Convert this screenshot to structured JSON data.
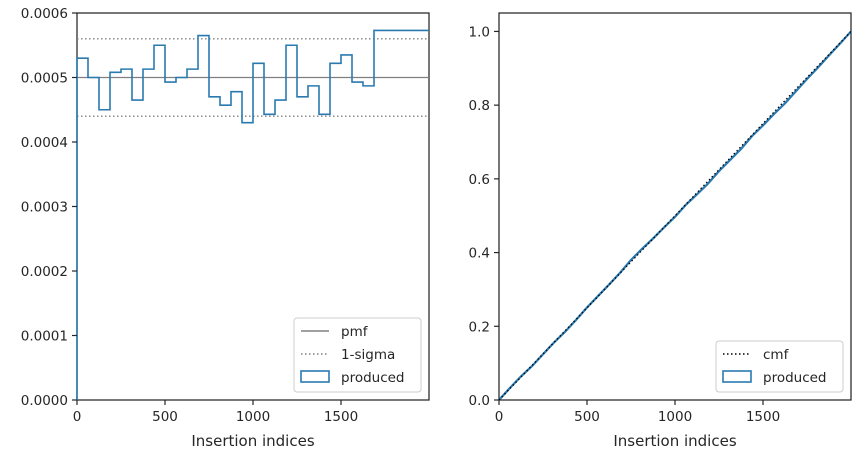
{
  "colors": {
    "produced": "#2a7ab0",
    "pmf": "#808080",
    "sigma": "#808080",
    "cmf": "#000000",
    "axes": "#262626"
  },
  "chart_data": [
    {
      "type": "step",
      "xlabel": "Insertion indices",
      "ylabel": "",
      "xlim": [
        0,
        2000
      ],
      "ylim": [
        0,
        0.0006
      ],
      "x_ticks": [
        0,
        500,
        1000,
        1500
      ],
      "x_tick_labels": [
        "0",
        "500",
        "1000",
        "1500"
      ],
      "y_ticks": [
        0,
        0.0001,
        0.0002,
        0.0003,
        0.0004,
        0.0005,
        0.0006
      ],
      "y_tick_labels": [
        "0.0000",
        "0.0001",
        "0.0002",
        "0.0003",
        "0.0004",
        "0.0005",
        "0.0006"
      ],
      "legend_position": "lower-right",
      "lines": [
        {
          "name": "pmf",
          "y": 0.0005,
          "style": "solid"
        },
        {
          "name": "1-sigma",
          "y_values": [
            0.00056,
            0.00044
          ],
          "style": "dotted"
        }
      ],
      "series": [
        {
          "name": "produced",
          "bin_width": 62.5,
          "values": [
            0.00053,
            0.0005,
            0.00045,
            0.000508,
            0.000513,
            0.000465,
            0.000513,
            0.00055,
            0.000493,
            0.0005,
            0.000513,
            0.000565,
            0.00047,
            0.000457,
            0.000478,
            0.00043,
            0.000522,
            0.000443,
            0.000465,
            0.00055,
            0.00047,
            0.000487,
            0.000443,
            0.000522,
            0.000535,
            0.000493,
            0.000487,
            0.000573,
            0.000573,
            0.000573,
            0.000573,
            0.000573
          ]
        }
      ],
      "legend": [
        "pmf",
        "1-sigma",
        "produced"
      ]
    },
    {
      "type": "line",
      "xlabel": "Insertion indices",
      "ylabel": "",
      "xlim": [
        0,
        2000
      ],
      "ylim": [
        0,
        1.05
      ],
      "x_ticks": [
        0,
        500,
        1000,
        1500
      ],
      "x_tick_labels": [
        "0",
        "500",
        "1000",
        "1500"
      ],
      "y_ticks": [
        0,
        0.2,
        0.4,
        0.6,
        0.8,
        1.0
      ],
      "y_tick_labels": [
        "0.0",
        "0.2",
        "0.4",
        "0.6",
        "0.8",
        "1.0"
      ],
      "legend_position": "lower-right",
      "series": [
        {
          "name": "cmf",
          "x": [
            0,
            2000
          ],
          "y": [
            0,
            1.0
          ],
          "style": "dotted"
        },
        {
          "name": "produced",
          "x": [
            0,
            62.5,
            125,
            187.5,
            250,
            312.5,
            375,
            437.5,
            500,
            562.5,
            625,
            687.5,
            750,
            812.5,
            875,
            937.5,
            1000,
            1062.5,
            1125,
            1187.5,
            1250,
            1312.5,
            1375,
            1437.5,
            1500,
            1562.5,
            1625,
            1687.5,
            1750,
            1812.5,
            1875,
            1937.5,
            2000
          ],
          "y": [
            0,
            0.033,
            0.064,
            0.092,
            0.124,
            0.156,
            0.185,
            0.217,
            0.251,
            0.282,
            0.313,
            0.345,
            0.38,
            0.41,
            0.438,
            0.468,
            0.497,
            0.53,
            0.558,
            0.587,
            0.621,
            0.651,
            0.681,
            0.716,
            0.745,
            0.776,
            0.805,
            0.838,
            0.871,
            0.902,
            0.935,
            0.967,
            1.0
          ]
        }
      ],
      "legend": [
        "cmf",
        "produced"
      ]
    }
  ]
}
